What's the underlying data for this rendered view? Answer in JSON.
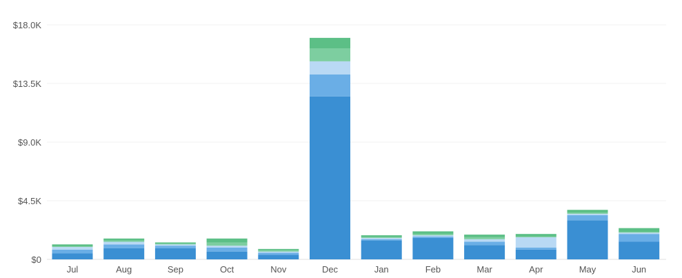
{
  "chart_data": {
    "type": "bar",
    "stacked": true,
    "categories": [
      "Jul",
      "Aug",
      "Sep",
      "Oct",
      "Nov",
      "Dec",
      "Jan",
      "Feb",
      "Mar",
      "Apr",
      "May",
      "Jun"
    ],
    "series": [
      {
        "color": "#3a8fd3",
        "values": [
          450,
          850,
          850,
          600,
          350,
          12500,
          1450,
          1650,
          1100,
          750,
          3000,
          1350
        ]
      },
      {
        "color": "#6aaee6",
        "values": [
          300,
          300,
          200,
          300,
          150,
          1700,
          100,
          100,
          250,
          150,
          400,
          600
        ]
      },
      {
        "color": "#b9d9f4",
        "values": [
          200,
          200,
          100,
          150,
          100,
          1000,
          100,
          100,
          200,
          800,
          100,
          100
        ]
      },
      {
        "color": "#7dcea0",
        "values": [
          50,
          100,
          50,
          250,
          100,
          1000,
          50,
          100,
          150,
          50,
          100,
          50
        ]
      },
      {
        "color": "#5cbf86",
        "values": [
          150,
          150,
          100,
          300,
          100,
          800,
          150,
          200,
          200,
          200,
          200,
          300
        ]
      }
    ],
    "yticks": [
      "$0",
      "$4.5K",
      "$9.0K",
      "$13.5K",
      "$18.0K"
    ],
    "ylim": [
      0,
      18000
    ],
    "grid": true,
    "legend": "none"
  }
}
